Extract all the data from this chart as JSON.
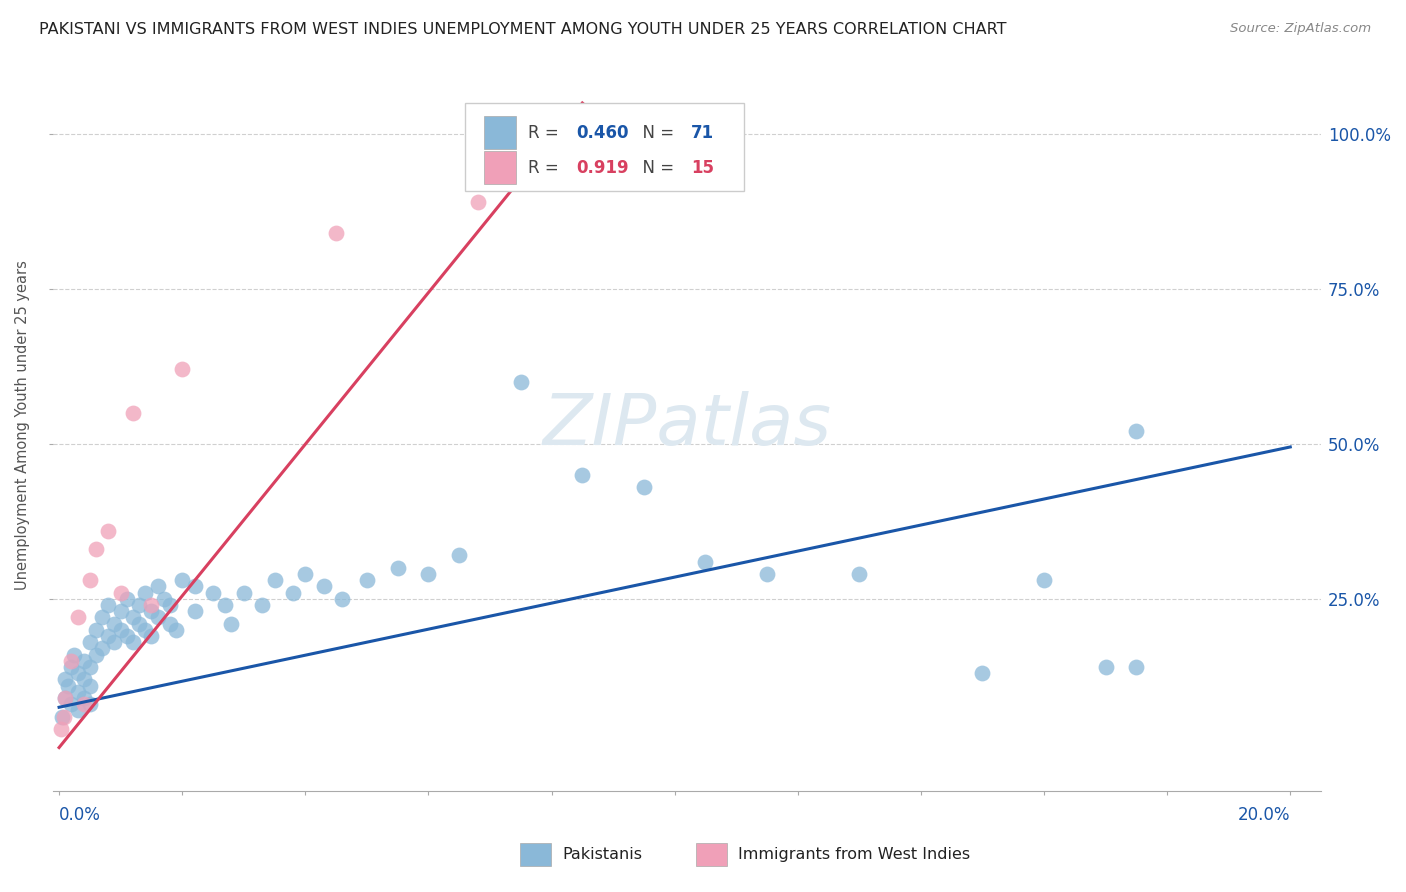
{
  "title": "PAKISTANI VS IMMIGRANTS FROM WEST INDIES UNEMPLOYMENT AMONG YOUTH UNDER 25 YEARS CORRELATION CHART",
  "source": "Source: ZipAtlas.com",
  "ylabel": "Unemployment Among Youth under 25 years",
  "yaxis_values": [
    0.25,
    0.5,
    0.75,
    1.0
  ],
  "yaxis_labels": [
    "25.0%",
    "50.0%",
    "75.0%",
    "100.0%"
  ],
  "xlim": [
    -0.001,
    0.205
  ],
  "ylim": [
    -0.06,
    1.12
  ],
  "blue_R": 0.46,
  "blue_N": 71,
  "pink_R": 0.919,
  "pink_N": 15,
  "blue_color": "#8ab8d8",
  "pink_color": "#f0a0b8",
  "blue_line_color": "#1a56a8",
  "pink_line_color": "#d84060",
  "blue_line_x": [
    0.0,
    0.2
  ],
  "blue_line_y": [
    0.075,
    0.495
  ],
  "pink_line_x": [
    0.0,
    0.085
  ],
  "pink_line_y": [
    0.01,
    1.05
  ],
  "pakistanis_x": [
    0.0005,
    0.001,
    0.001,
    0.0015,
    0.002,
    0.002,
    0.0025,
    0.003,
    0.003,
    0.003,
    0.004,
    0.004,
    0.004,
    0.005,
    0.005,
    0.005,
    0.005,
    0.006,
    0.006,
    0.007,
    0.007,
    0.008,
    0.008,
    0.009,
    0.009,
    0.01,
    0.01,
    0.011,
    0.011,
    0.012,
    0.012,
    0.013,
    0.013,
    0.014,
    0.014,
    0.015,
    0.015,
    0.016,
    0.016,
    0.017,
    0.018,
    0.018,
    0.019,
    0.02,
    0.022,
    0.022,
    0.025,
    0.027,
    0.028,
    0.03,
    0.033,
    0.035,
    0.038,
    0.04,
    0.043,
    0.046,
    0.05,
    0.055,
    0.06,
    0.065,
    0.075,
    0.085,
    0.095,
    0.105,
    0.115,
    0.13,
    0.15,
    0.16,
    0.17,
    0.175,
    0.175
  ],
  "pakistanis_y": [
    0.06,
    0.09,
    0.12,
    0.11,
    0.14,
    0.08,
    0.16,
    0.13,
    0.1,
    0.07,
    0.15,
    0.12,
    0.09,
    0.18,
    0.14,
    0.11,
    0.08,
    0.2,
    0.16,
    0.22,
    0.17,
    0.24,
    0.19,
    0.21,
    0.18,
    0.23,
    0.2,
    0.25,
    0.19,
    0.22,
    0.18,
    0.24,
    0.21,
    0.26,
    0.2,
    0.23,
    0.19,
    0.27,
    0.22,
    0.25,
    0.24,
    0.21,
    0.2,
    0.28,
    0.27,
    0.23,
    0.26,
    0.24,
    0.21,
    0.26,
    0.24,
    0.28,
    0.26,
    0.29,
    0.27,
    0.25,
    0.28,
    0.3,
    0.29,
    0.32,
    0.6,
    0.45,
    0.43,
    0.31,
    0.29,
    0.29,
    0.13,
    0.28,
    0.14,
    0.52,
    0.14
  ],
  "westindies_x": [
    0.0003,
    0.0008,
    0.001,
    0.002,
    0.003,
    0.004,
    0.005,
    0.006,
    0.008,
    0.01,
    0.012,
    0.015,
    0.02,
    0.045,
    0.068
  ],
  "westindies_y": [
    0.04,
    0.06,
    0.09,
    0.15,
    0.22,
    0.08,
    0.28,
    0.33,
    0.36,
    0.26,
    0.55,
    0.24,
    0.62,
    0.84,
    0.89
  ],
  "watermark_text": "ZIPatlas",
  "legend_label_blue": "Pakistanis",
  "legend_label_pink": "Immigrants from West Indies"
}
